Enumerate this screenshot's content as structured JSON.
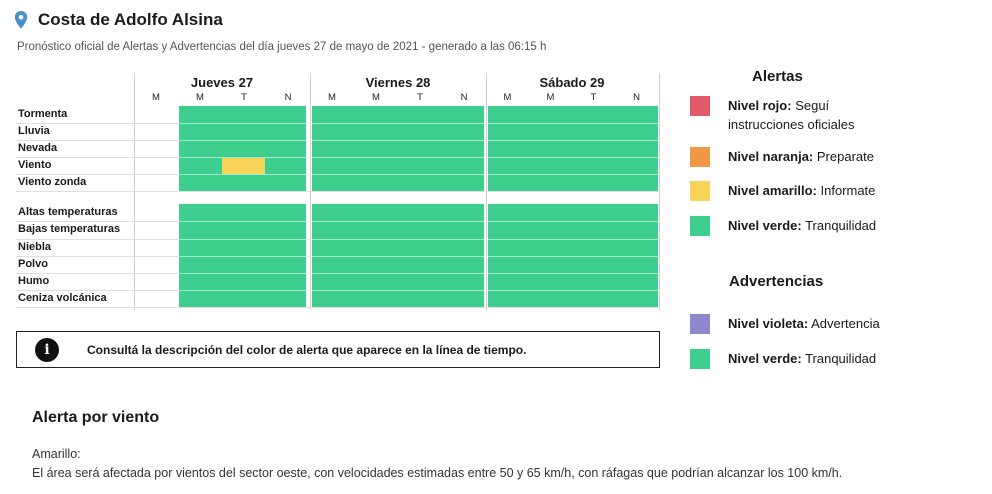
{
  "header": {
    "location_icon": "location-pin-icon",
    "title": "Costa de Adolfo Alsina",
    "subtitle": "Pronóstico oficial de Alertas y Advertencias del día jueves 27 de mayo de 2021 - generado a las 06:15 h"
  },
  "timeline": {
    "days": [
      {
        "name": "Jueves 27",
        "slots": [
          "M",
          "M",
          "T",
          "N"
        ]
      },
      {
        "name": "Viernes 28",
        "slots": [
          "M",
          "M",
          "T",
          "N"
        ]
      },
      {
        "name": "Sábado 29",
        "slots": [
          "M",
          "M",
          "T",
          "N"
        ]
      }
    ],
    "alert_rows": [
      "Tormenta",
      "Lluvia",
      "Nevada",
      "Viento",
      "Viento zonda"
    ],
    "warning_rows": [
      "Altas temperaturas",
      "Bajas temperaturas",
      "Niebla",
      "Polvo",
      "Humo",
      "Ceniza volcánica"
    ],
    "highlight": {
      "row": "Viento",
      "day": "Jueves 27",
      "slot": "T",
      "level": "amarillo"
    },
    "colors": {
      "green": "#3ecf8e",
      "yellow": "#f7d358"
    }
  },
  "info": {
    "icon": "info-icon",
    "icon_glyph": "i",
    "text": "Consultá la descripción del color de alerta que aparece en la línea de tiempo."
  },
  "legend": {
    "alerts_title": "Alertas",
    "alerts": [
      {
        "name": "Nivel rojo:",
        "desc": " Seguí instrucciones oficiales",
        "color": "#e05a6a"
      },
      {
        "name": "Nivel naranja:",
        "desc": " Preparate",
        "color": "#f29744"
      },
      {
        "name": "Nivel amarillo:",
        "desc": " Informate",
        "color": "#f7d358"
      },
      {
        "name": "Nivel verde:",
        "desc": " Tranquilidad",
        "color": "#3ecf8e"
      }
    ],
    "warnings_title": "Advertencias",
    "warnings": [
      {
        "name": "Nivel violeta:",
        "desc": " Advertencia",
        "color": "#8d87cf"
      },
      {
        "name": "Nivel verde:",
        "desc": " Tranquilidad",
        "color": "#3ecf8e"
      }
    ]
  },
  "alert_detail": {
    "title": "Alerta por viento",
    "level": "Amarillo:",
    "description": "El área será afectada por vientos del sector oeste, con velocidades estimadas entre 50 y 65 km/h, con ráfagas que podrían alcanzar los 100 km/h."
  }
}
